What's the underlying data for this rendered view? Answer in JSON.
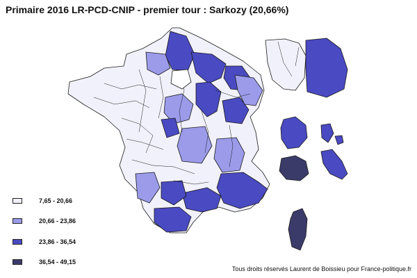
{
  "title": "Primaire 2016 LR-PCD-CNIP - premier tour : Sarkozy (20,66%)",
  "legend": [
    {
      "label": "7,65 - 20,66",
      "color": "#f1f1fb"
    },
    {
      "label": "20,66 - 23,86",
      "color": "#9b9bea"
    },
    {
      "label": "23,86 - 36,54",
      "color": "#4a4ac2"
    },
    {
      "label": "36,54 - 49,15",
      "color": "#3b3b6a"
    }
  ],
  "credit": "Tous droits réservés Laurent de Boissieu pour France-politique.fr",
  "colors": {
    "outline": "#1a1a1a",
    "background": "#ffffff"
  }
}
